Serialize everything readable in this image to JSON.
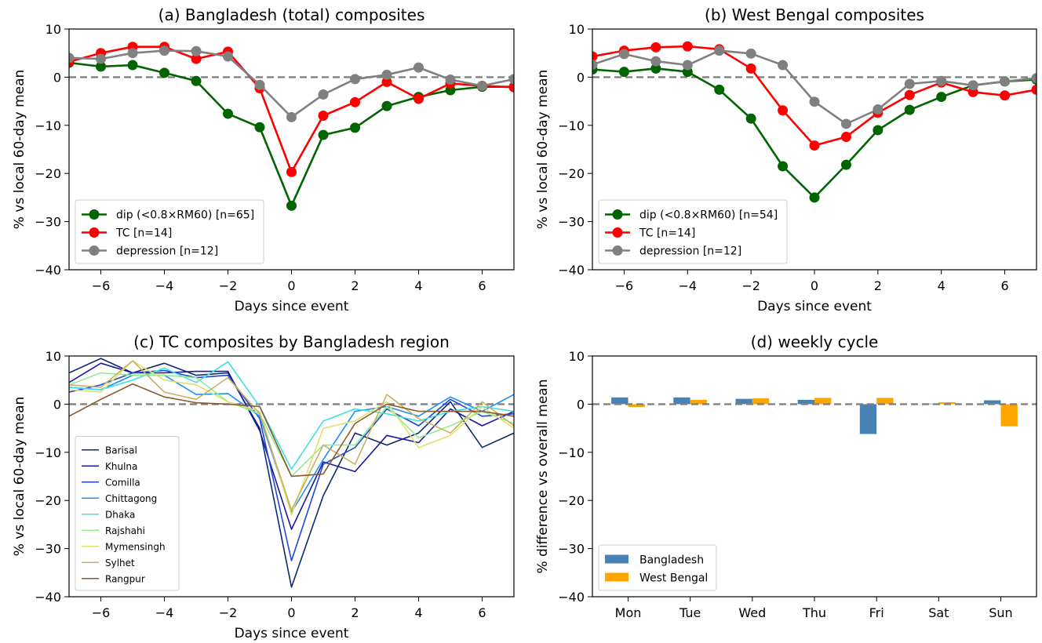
{
  "chart_data": [
    {
      "panel": "a",
      "type": "line",
      "title": "(a) Bangladesh (total) composites",
      "xlabel": "Days since event",
      "ylabel": "% vs local 60-day mean",
      "xlim": [
        -7,
        7
      ],
      "ylim": [
        -40,
        10
      ],
      "xticks": [
        -6,
        -4,
        -2,
        0,
        2,
        4,
        6
      ],
      "yticks": [
        -40,
        -30,
        -20,
        -10,
        0,
        10
      ],
      "zero_line": true,
      "markers": true,
      "legend": "lower-left",
      "x": [
        -7,
        -6,
        -5,
        -4,
        -3,
        -2,
        -1,
        0,
        1,
        2,
        3,
        4,
        5,
        6,
        7
      ],
      "series": [
        {
          "name": "dip (<0.8×RM60) [n=65]",
          "color": "#006400",
          "values": [
            3.0,
            2.2,
            2.5,
            0.9,
            -0.8,
            -7.6,
            -10.4,
            -26.7,
            -12.0,
            -10.5,
            -6.0,
            -4.1,
            -2.7,
            -2.0,
            -2.0
          ]
        },
        {
          "name": "TC [n=14]",
          "color": "#ff0000",
          "values": [
            3.2,
            5.0,
            6.3,
            6.3,
            3.8,
            5.3,
            -2.3,
            -19.7,
            -8.0,
            -5.2,
            -1.0,
            -4.5,
            -1.3,
            -1.8,
            -2.1
          ]
        },
        {
          "name": "depression [n=12]",
          "color": "#808080",
          "values": [
            4.0,
            3.8,
            5.0,
            5.5,
            5.4,
            4.3,
            -1.6,
            -8.3,
            -3.6,
            -0.4,
            0.5,
            2.0,
            -0.5,
            -1.8,
            -0.4
          ]
        }
      ]
    },
    {
      "panel": "b",
      "type": "line",
      "title": "(b) West Bengal composites",
      "xlabel": "Days since event",
      "ylabel": "% vs local 60-day mean",
      "xlim": [
        -7,
        7
      ],
      "ylim": [
        -40,
        10
      ],
      "xticks": [
        -6,
        -4,
        -2,
        0,
        2,
        4,
        6
      ],
      "yticks": [
        -40,
        -30,
        -20,
        -10,
        0,
        10
      ],
      "zero_line": true,
      "markers": true,
      "legend": "lower-left",
      "x": [
        -7,
        -6,
        -5,
        -4,
        -3,
        -2,
        -1,
        0,
        1,
        2,
        3,
        4,
        5,
        6,
        7
      ],
      "series": [
        {
          "name": "dip (<0.8×RM60) [n=54]",
          "color": "#006400",
          "values": [
            1.6,
            1.1,
            1.8,
            1.1,
            -2.6,
            -8.6,
            -18.5,
            -25.0,
            -18.2,
            -11.0,
            -6.8,
            -4.1,
            -1.7,
            -0.9,
            -0.5
          ]
        },
        {
          "name": "TC [n=14]",
          "color": "#ff0000",
          "values": [
            4.3,
            5.5,
            6.2,
            6.4,
            5.8,
            1.8,
            -6.9,
            -14.2,
            -12.4,
            -7.4,
            -3.7,
            -1.1,
            -3.1,
            -3.8,
            -2.6
          ]
        },
        {
          "name": "depression [n=12]",
          "color": "#808080",
          "values": [
            2.6,
            4.8,
            3.3,
            2.5,
            5.5,
            4.9,
            2.5,
            -5.1,
            -9.7,
            -6.7,
            -1.4,
            -0.8,
            -1.7,
            -0.9,
            -0.2
          ]
        }
      ]
    },
    {
      "panel": "c",
      "type": "line",
      "title": "(c) TC composites by Bangladesh region",
      "xlabel": "Days since event",
      "ylabel": "% vs local 60-day mean",
      "xlim": [
        -7,
        7
      ],
      "ylim": [
        -40,
        10
      ],
      "xticks": [
        -6,
        -4,
        -2,
        0,
        2,
        4,
        6
      ],
      "yticks": [
        -40,
        -30,
        -20,
        -10,
        0,
        10
      ],
      "zero_line": true,
      "markers": false,
      "legend": "lower-left",
      "x": [
        -7,
        -6,
        -5,
        -4,
        -3,
        -2,
        -1,
        0,
        1,
        2,
        3,
        4,
        5,
        6,
        7
      ],
      "series": [
        {
          "name": "Barisal",
          "color": "#0d2a6e",
          "values": [
            6.5,
            9.5,
            6.5,
            8.5,
            6.0,
            6.5,
            -5.0,
            -38.0,
            -19.0,
            -6.0,
            -8.5,
            -6.0,
            0.5,
            -9.0,
            -6.0
          ]
        },
        {
          "name": "Khulna",
          "color": "#1a1aa0",
          "values": [
            4.5,
            8.5,
            6.5,
            6.5,
            6.8,
            6.8,
            -5.5,
            -26.0,
            -12.0,
            -14.0,
            -6.5,
            -8.0,
            -1.0,
            -4.5,
            -1.5
          ]
        },
        {
          "name": "Comilla",
          "color": "#2147d4",
          "values": [
            2.5,
            4.0,
            6.5,
            7.0,
            5.5,
            6.0,
            -3.0,
            -32.5,
            -12.5,
            -9.0,
            -1.0,
            -4.5,
            1.0,
            -2.5,
            -2.0
          ]
        },
        {
          "name": "Chittagong",
          "color": "#1e90ff",
          "values": [
            3.5,
            3.0,
            6.0,
            6.0,
            2.0,
            2.2,
            -2.5,
            -22.5,
            -11.5,
            -1.5,
            -0.5,
            -2.5,
            1.5,
            -1.5,
            2.0
          ]
        },
        {
          "name": "Dhaka",
          "color": "#40e0e0",
          "values": [
            3.5,
            3.0,
            5.0,
            7.5,
            4.5,
            8.8,
            -0.5,
            -13.5,
            -3.5,
            -1.0,
            -2.0,
            -3.5,
            -1.5,
            -0.5,
            -1.5
          ]
        },
        {
          "name": "Rajshahi",
          "color": "#90ee90",
          "values": [
            4.0,
            6.5,
            6.0,
            6.0,
            5.5,
            0.5,
            -2.0,
            -15.0,
            -8.5,
            -8.5,
            -0.5,
            -7.0,
            -4.5,
            -1.5,
            -4.0
          ]
        },
        {
          "name": "Mymensingh",
          "color": "#e0e070",
          "values": [
            3.0,
            2.5,
            9.0,
            5.0,
            4.0,
            0.5,
            -1.5,
            -23.0,
            -5.0,
            -3.5,
            0.5,
            -9.0,
            -6.5,
            -0.5,
            -5.0
          ]
        },
        {
          "name": "Sylhet",
          "color": "#c8b060",
          "values": [
            4.0,
            3.5,
            9.0,
            2.5,
            1.0,
            5.5,
            -2.0,
            -22.0,
            -8.5,
            -12.5,
            2.0,
            -3.0,
            -6.0,
            0.5,
            -4.5
          ]
        },
        {
          "name": "Rangpur",
          "color": "#8b5a2b",
          "values": [
            -2.5,
            1.0,
            4.2,
            1.5,
            0.3,
            0.0,
            -0.5,
            -15.0,
            -14.5,
            -4.0,
            0.0,
            -1.5,
            -1.5,
            -1.5,
            -2.5
          ]
        }
      ]
    },
    {
      "panel": "d",
      "type": "bar",
      "title": "(d) weekly cycle",
      "xlabel": "",
      "ylabel": "% difference vs overall mean",
      "ylim": [
        -40,
        10
      ],
      "yticks": [
        -40,
        -30,
        -20,
        -10,
        0,
        10
      ],
      "zero_line": true,
      "legend": "lower-left",
      "categories": [
        "Mon",
        "Tue",
        "Wed",
        "Thu",
        "Fri",
        "Sat",
        "Sun"
      ],
      "series": [
        {
          "name": "Bangladesh",
          "color": "#4682b4",
          "values": [
            1.4,
            1.4,
            1.1,
            0.9,
            -6.2,
            0.1,
            0.8
          ]
        },
        {
          "name": "West Bengal",
          "color": "#ffa500",
          "values": [
            -0.6,
            0.9,
            1.2,
            1.3,
            1.3,
            0.4,
            -4.6
          ]
        }
      ]
    }
  ]
}
